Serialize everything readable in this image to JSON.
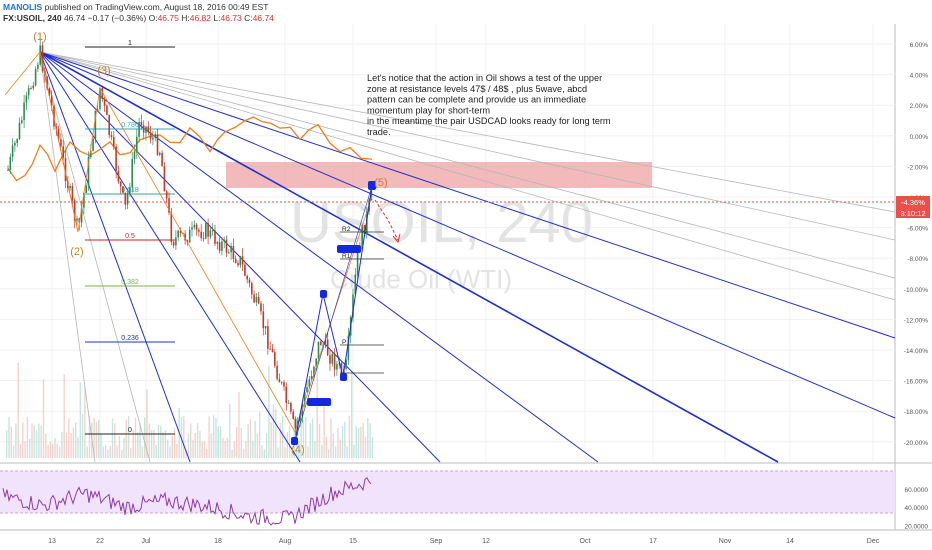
{
  "header": {
    "author": "MANOLIS",
    "published_text": "published on TradingView.com, August 18, 2016 00:49 EST",
    "symbol": "FX:USOIL, 240",
    "last": "46.74",
    "change": "−0.17 (−0.36%)",
    "o_label": "O:",
    "o_value": "46.75",
    "h_label": "H:",
    "h_value": "46.82",
    "l_label": "L:",
    "l_value": "46.73",
    "c_label": "C:",
    "c_value": "46.74"
  },
  "watermark": {
    "symbol": "USOIL, 240",
    "name": "Crude Oil (WTI)"
  },
  "annotation": {
    "lines": [
      "Let's notice that the action in Oil shows a test of the upper",
      "zone at  resistance levels 47$ / 48$ , plus 5wave, abcd",
      "pattern can be complete and provide us an immediate",
      "momentum play for short-term",
      "in the meantime the pair USDCAD looks ready for long term",
      "trade."
    ]
  },
  "colors": {
    "candle_up": "#2b8a56",
    "candle_down": "#c0392b",
    "overlay": "#f07f1a",
    "fan_lines": "#1f2fd0",
    "resistance_zone": "#eea3a3",
    "rsi": "#8e3aa8",
    "rsi_band": "#f1e3fb",
    "price_badge": "#e8514a"
  },
  "chart_data": [
    {
      "type": "line",
      "series": [
        {
          "values": [
            {
              "x": "Jun 13",
              "y": 47.2
            },
            {
              "x": "Jun 17",
              "y": 48.1
            },
            {
              "x": "Jun 22",
              "y": 49.0
            },
            {
              "x": "Jun 27",
              "y": 46.8
            },
            {
              "x": "Jul 1",
              "y": 48.4
            },
            {
              "x": "Jul 6",
              "y": 46.5
            },
            {
              "x": "Jul 11",
              "y": 44.9
            },
            {
              "x": "Jul 15",
              "y": 45.6
            },
            {
              "x": "Jul 20",
              "y": 44.1
            },
            {
              "x": "Jul 25",
              "y": 42.7
            },
            {
              "x": "Jul 28",
              "y": 41.1
            },
            {
              "x": "Aug 1",
              "y": 40.3
            },
            {
              "x": "Aug 3",
              "y": 39.8
            },
            {
              "x": "Aug 5",
              "y": 41.6
            },
            {
              "x": "Aug 9",
              "y": 42.5
            },
            {
              "x": "Aug 11",
              "y": 42.1
            },
            {
              "x": "Aug 15",
              "y": 45.3
            },
            {
              "x": "Aug 17",
              "y": 46.7
            }
          ]
        }
      ],
      "right_axis_ticks": [
        "6.00%",
        "4.00%",
        "2.00%",
        "0.00%",
        "-2.00%",
        "-4.00%",
        "-6.00%",
        "-8.00%",
        "-10.00%",
        "-12.00%",
        "-14.00%",
        "-16.00%",
        "-18.00%",
        "-20.00%"
      ],
      "price_badge": "-4.36%",
      "time_badge": "3:10:12",
      "fib_levels": [
        {
          "label": "1",
          "color": "#222222"
        },
        {
          "label": "0.786",
          "color": "#3aa6b9"
        },
        {
          "label": "0.618",
          "color": "#2cab8a"
        },
        {
          "label": "0.5",
          "color": "#d11f1f"
        },
        {
          "label": "0.382",
          "color": "#7cb342"
        },
        {
          "label": "0.236",
          "color": "#1f2fd0"
        },
        {
          "label": "0",
          "color": "#222222"
        }
      ],
      "wave_labels": [
        "(1)",
        "(2)",
        "(3)",
        "(4)",
        "(5)"
      ],
      "pivot_labels": [
        "R2",
        "R1",
        "P"
      ]
    },
    {
      "type": "line",
      "series": [
        {
          "values": [
            {
              "x": "Jun 13",
              "y": 52
            },
            {
              "x": "Jun 20",
              "y": 42
            },
            {
              "x": "Jun 27",
              "y": 55
            },
            {
              "x": "Jul 5",
              "y": 40
            },
            {
              "x": "Jul 12",
              "y": 47
            },
            {
              "x": "Jul 19",
              "y": 41
            },
            {
              "x": "Jul 26",
              "y": 30
            },
            {
              "x": "Aug 2",
              "y": 27
            },
            {
              "x": "Aug 9",
              "y": 55
            },
            {
              "x": "Aug 17",
              "y": 70
            }
          ]
        }
      ],
      "right_axis_ticks": [
        "60.0000",
        "40.0000",
        "20.0000"
      ],
      "ylim": [
        15,
        85
      ]
    }
  ],
  "x_axis": {
    "ticks": [
      "13",
      "22",
      "Jul",
      "18",
      "Aug",
      "15",
      "Sep",
      "12",
      "Oct",
      "17",
      "Nov",
      "14",
      "Dec"
    ]
  }
}
